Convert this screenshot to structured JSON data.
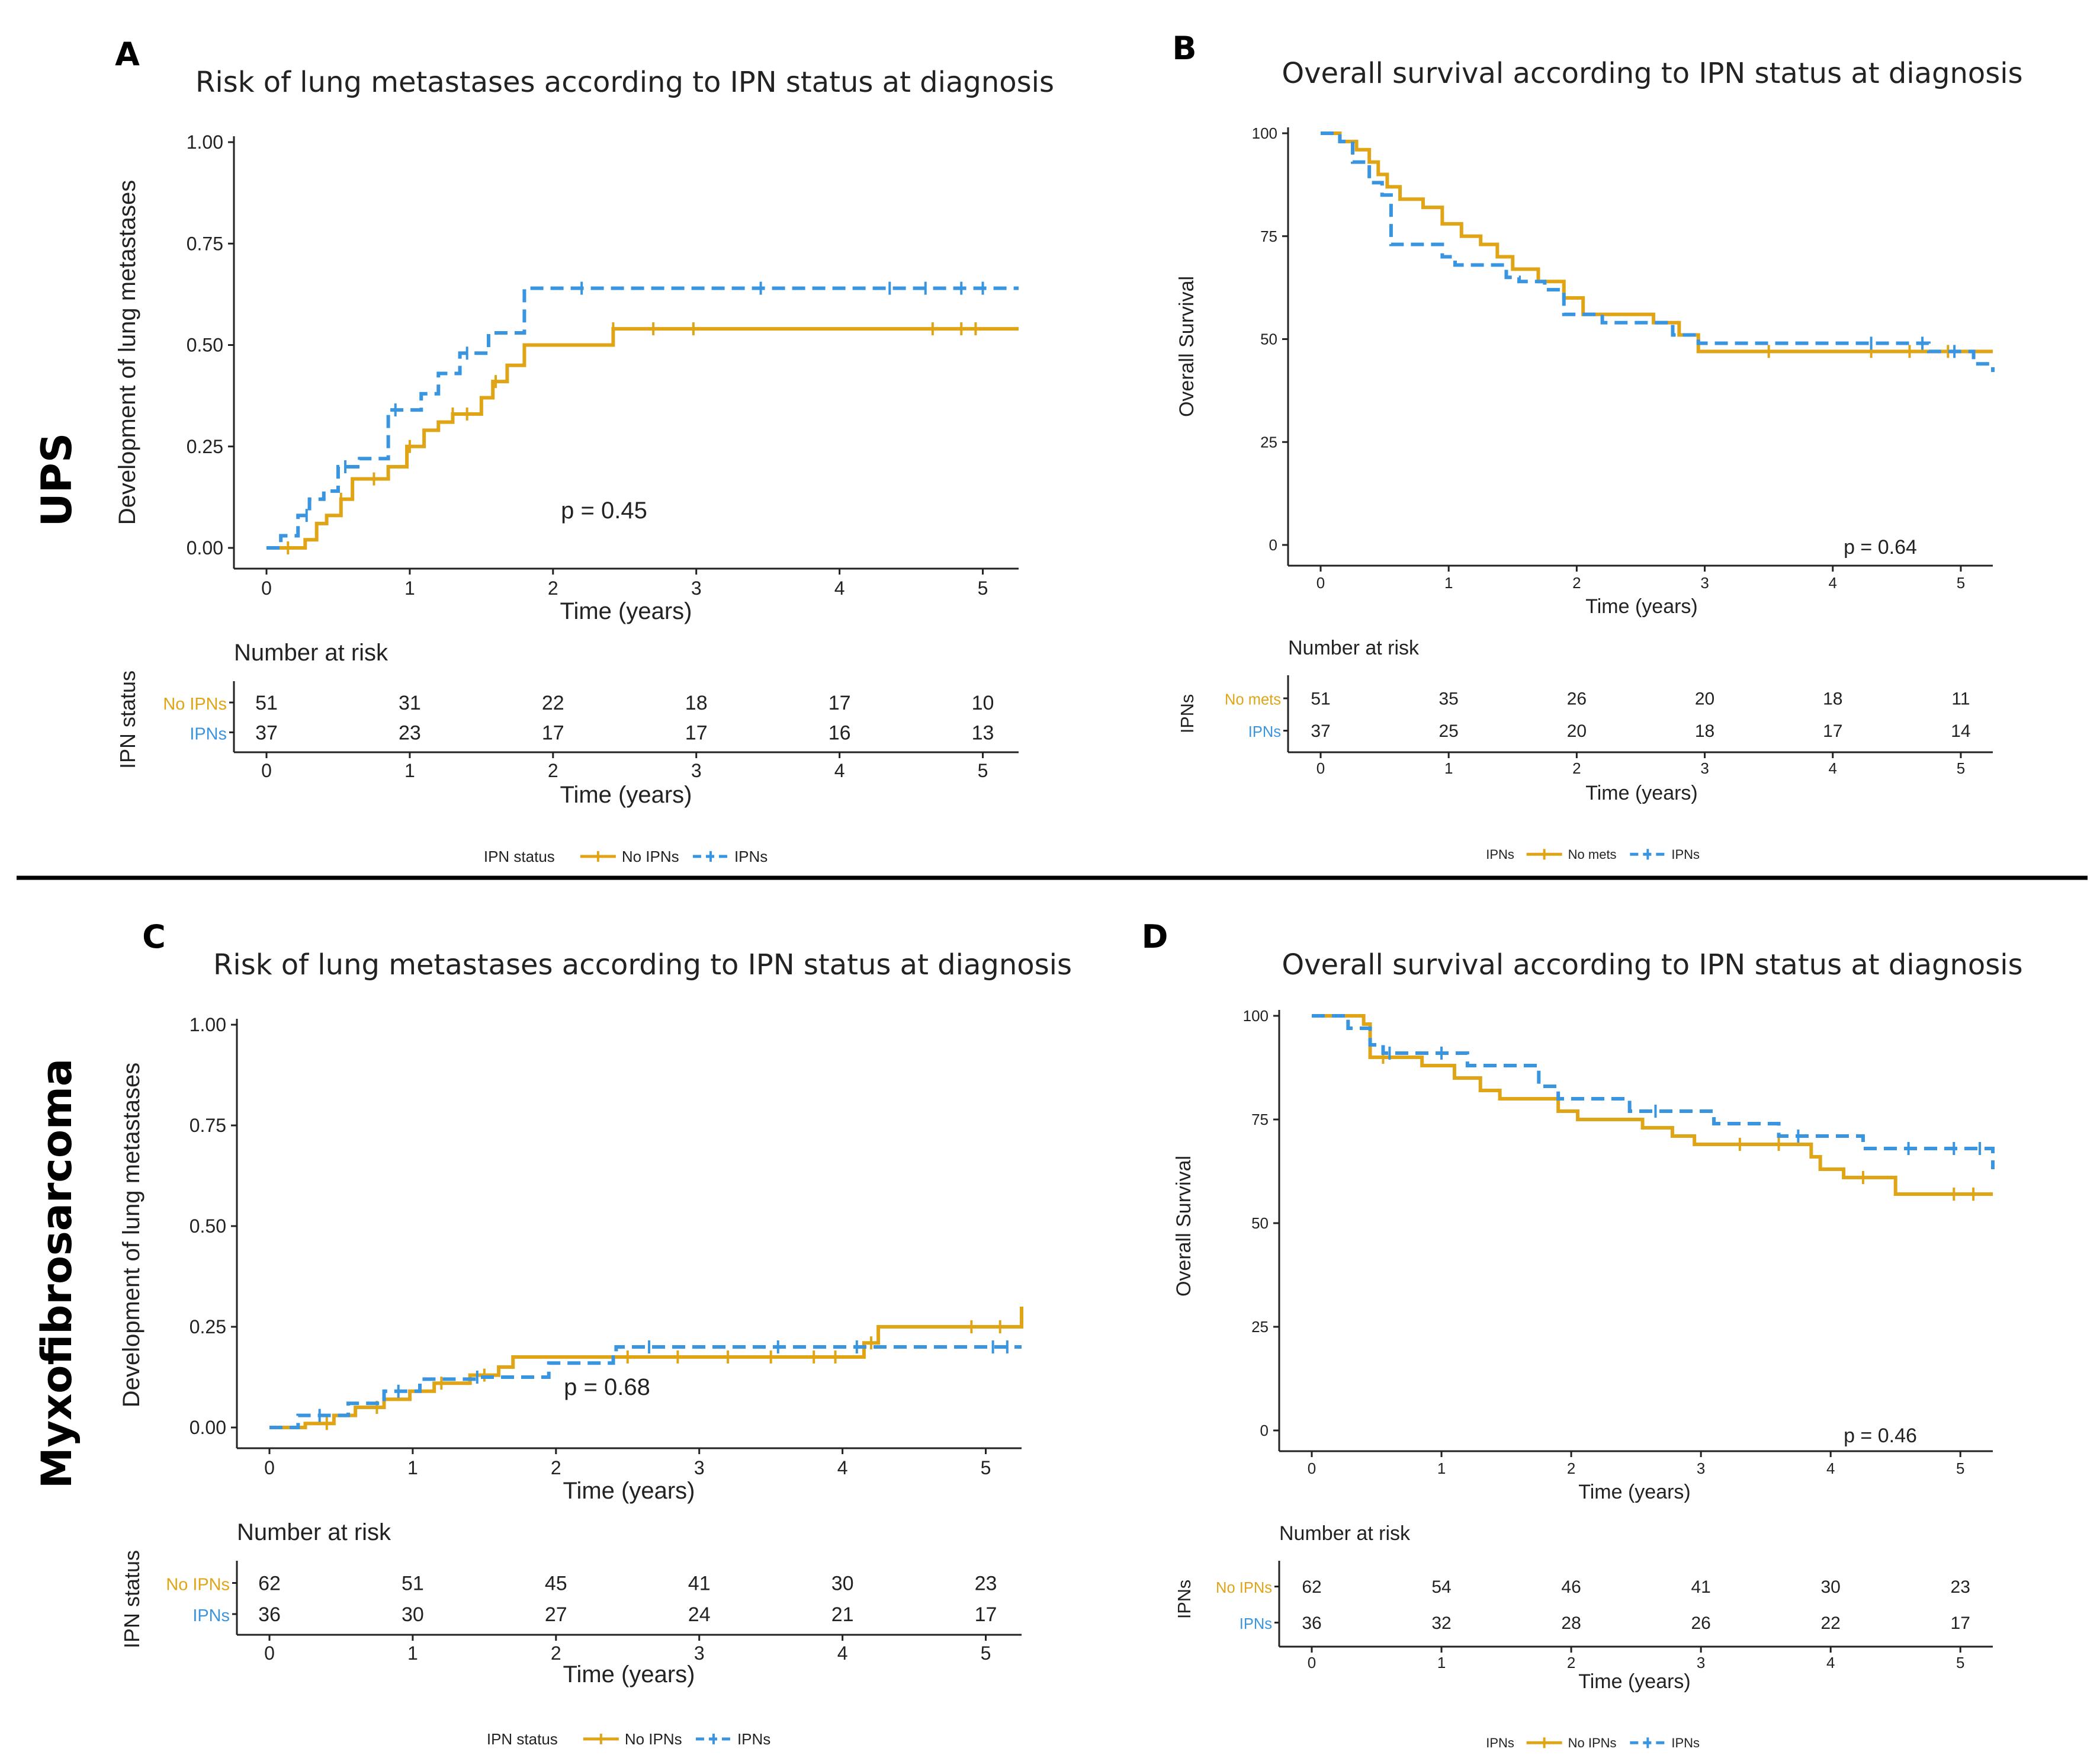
{
  "side_labels": [
    "UPS",
    "Myxofibrosarcoma"
  ],
  "colors": {
    "gold": "#E0A516",
    "blue": "#3A95E0",
    "axis": "#222222"
  },
  "panels": [
    {
      "letter": "A",
      "title": "Risk of lung metastases according to IPN status at diagnosis",
      "ylabel": "Development of lung metastases",
      "xlabel": "Time (years)",
      "yticks": [
        "0.00",
        "0.25",
        "0.50",
        "0.75",
        "1.00"
      ],
      "xticks": [
        "0",
        "1",
        "2",
        "3",
        "4",
        "5"
      ],
      "pvalue": "p = 0.45",
      "risk_title": "Number at risk",
      "risk_ylabel": "IPN status",
      "risk_xlabel": "Time (years)",
      "risk_rows": [
        {
          "label": "No IPNs",
          "values": [
            "51",
            "31",
            "22",
            "18",
            "17",
            "10"
          ]
        },
        {
          "label": "IPNs",
          "values": [
            "37",
            "23",
            "17",
            "17",
            "16",
            "13"
          ]
        }
      ],
      "legend_title": "IPN status",
      "legend_items": [
        "No IPNs",
        "IPNs"
      ]
    },
    {
      "letter": "B",
      "title": "Overall survival according to IPN status at diagnosis",
      "ylabel": "Overall Survival",
      "xlabel": "Time (years)",
      "yticks": [
        "0",
        "25",
        "50",
        "75",
        "100"
      ],
      "xticks": [
        "0",
        "1",
        "2",
        "3",
        "4",
        "5"
      ],
      "pvalue": "p = 0.64",
      "risk_title": "Number at risk",
      "risk_ylabel": "IPNs",
      "risk_xlabel": "Time (years)",
      "risk_rows": [
        {
          "label": "No mets",
          "values": [
            "51",
            "35",
            "26",
            "20",
            "18",
            "11"
          ]
        },
        {
          "label": "IPNs",
          "values": [
            "37",
            "25",
            "20",
            "18",
            "17",
            "14"
          ]
        }
      ],
      "legend_title": "IPNs",
      "legend_items": [
        "No mets",
        "IPNs"
      ]
    },
    {
      "letter": "C",
      "title": "Risk of lung metastases according to IPN status at diagnosis",
      "ylabel": "Development of lung metastases",
      "xlabel": "Time (years)",
      "yticks": [
        "0.00",
        "0.25",
        "0.50",
        "0.75",
        "1.00"
      ],
      "xticks": [
        "0",
        "1",
        "2",
        "3",
        "4",
        "5"
      ],
      "pvalue": "p = 0.68",
      "risk_title": "Number at risk",
      "risk_ylabel": "IPN status",
      "risk_xlabel": "Time (years)",
      "risk_rows": [
        {
          "label": "No IPNs",
          "values": [
            "62",
            "51",
            "45",
            "41",
            "30",
            "23"
          ]
        },
        {
          "label": "IPNs",
          "values": [
            "36",
            "30",
            "27",
            "24",
            "21",
            "17"
          ]
        }
      ],
      "legend_title": "IPN status",
      "legend_items": [
        "No IPNs",
        "IPNs"
      ]
    },
    {
      "letter": "D",
      "title": "Overall survival according to IPN status at diagnosis",
      "ylabel": "Overall Survival",
      "xlabel": "Time (years)",
      "yticks": [
        "0",
        "25",
        "50",
        "75",
        "100"
      ],
      "xticks": [
        "0",
        "1",
        "2",
        "3",
        "4",
        "5"
      ],
      "pvalue": "p = 0.46",
      "risk_title": "Number at risk",
      "risk_ylabel": "IPNs",
      "risk_xlabel": "Time (years)",
      "risk_rows": [
        {
          "label": "No IPNs",
          "values": [
            "62",
            "54",
            "46",
            "41",
            "30",
            "23"
          ]
        },
        {
          "label": "IPNs",
          "values": [
            "36",
            "32",
            "28",
            "26",
            "22",
            "17"
          ]
        }
      ],
      "legend_title": "IPNs",
      "legend_items": [
        "No IPNs",
        "IPNs"
      ]
    }
  ],
  "chart_data": [
    {
      "type": "line",
      "title": "Risk of lung metastases according to IPN status at diagnosis",
      "xlabel": "Time (years)",
      "ylabel": "Development of lung metastases",
      "xlim": [
        0,
        5.25
      ],
      "ylim": [
        0,
        1
      ],
      "series": [
        {
          "name": "No IPNs",
          "style": "solid",
          "x": [
            0,
            0.27,
            0.35,
            0.42,
            0.52,
            0.6,
            0.85,
            0.98,
            1.1,
            1.2,
            1.3,
            1.5,
            1.58,
            1.68,
            1.8,
            2.42,
            5.25
          ],
          "y": [
            0,
            0.02,
            0.06,
            0.08,
            0.12,
            0.17,
            0.2,
            0.25,
            0.29,
            0.31,
            0.33,
            0.37,
            0.41,
            0.45,
            0.5,
            0.54,
            0.54
          ],
          "censor_x": [
            0.15,
            0.52,
            0.75,
            1.0,
            1.3,
            1.4,
            1.6,
            2.42,
            2.7,
            2.98,
            4.65,
            4.85,
            4.95
          ]
        },
        {
          "name": "IPNs",
          "style": "dashed",
          "x": [
            0,
            0.1,
            0.22,
            0.3,
            0.4,
            0.5,
            0.65,
            0.85,
            1.08,
            1.2,
            1.35,
            1.55,
            1.8,
            5.25
          ],
          "y": [
            0,
            0.03,
            0.08,
            0.12,
            0.14,
            0.2,
            0.22,
            0.34,
            0.38,
            0.43,
            0.48,
            0.53,
            0.64,
            0.64
          ],
          "censor_x": [
            0.28,
            0.55,
            0.9,
            1.4,
            2.2,
            3.45,
            4.35,
            4.6,
            4.85,
            5.0
          ]
        }
      ],
      "pvalue": "p = 0.45"
    },
    {
      "type": "line",
      "title": "Overall survival according to IPN status at diagnosis",
      "xlabel": "Time (years)",
      "ylabel": "Overall Survival",
      "xlim": [
        0,
        5.25
      ],
      "ylim": [
        0,
        100
      ],
      "series": [
        {
          "name": "No mets",
          "style": "solid",
          "x": [
            0,
            0.15,
            0.28,
            0.38,
            0.45,
            0.52,
            0.62,
            0.8,
            0.95,
            1.1,
            1.25,
            1.38,
            1.5,
            1.7,
            1.9,
            2.05,
            2.6,
            2.8,
            2.95,
            5.25
          ],
          "y": [
            100,
            98,
            96,
            93,
            90,
            87,
            84,
            82,
            78,
            75,
            73,
            70,
            67,
            64,
            60,
            56,
            54,
            51,
            47,
            47
          ],
          "censor_x": [
            3.5,
            4.3,
            4.6,
            4.9
          ]
        },
        {
          "name": "IPNs",
          "style": "dashed",
          "x": [
            0,
            0.15,
            0.25,
            0.38,
            0.48,
            0.55,
            0.95,
            1.05,
            1.45,
            1.55,
            1.75,
            1.9,
            2.2,
            2.75,
            2.95,
            4.3,
            4.75,
            5.1,
            5.25
          ],
          "y": [
            100,
            98,
            93,
            88,
            85,
            73,
            70,
            68,
            65,
            64,
            62,
            56,
            54,
            51,
            49,
            49,
            47,
            44,
            42
          ],
          "censor_x": [
            4.3,
            4.7,
            4.95
          ]
        }
      ],
      "pvalue": "p = 0.64"
    },
    {
      "type": "line",
      "title": "Risk of lung metastases according to IPN status at diagnosis",
      "xlabel": "Time (years)",
      "ylabel": "Development of lung metastases",
      "xlim": [
        0,
        5.25
      ],
      "ylim": [
        0,
        1
      ],
      "series": [
        {
          "name": "No IPNs",
          "style": "solid",
          "x": [
            0,
            0.25,
            0.45,
            0.6,
            0.8,
            0.98,
            1.15,
            1.4,
            1.6,
            1.7,
            4.15,
            4.25,
            5.25
          ],
          "y": [
            0,
            0.01,
            0.03,
            0.05,
            0.07,
            0.09,
            0.11,
            0.13,
            0.15,
            0.175,
            0.21,
            0.25,
            0.3
          ],
          "censor_x": [
            0.4,
            0.75,
            1.2,
            1.5,
            2.5,
            2.85,
            3.2,
            3.5,
            3.8,
            3.95,
            4.2,
            4.9,
            5.1
          ]
        },
        {
          "name": "IPNs",
          "style": "dashed",
          "x": [
            0,
            0.2,
            0.55,
            0.8,
            1.05,
            1.45,
            1.95,
            2.4,
            2.42,
            4.2,
            5.25
          ],
          "y": [
            0,
            0.03,
            0.06,
            0.09,
            0.12,
            0.125,
            0.16,
            0.175,
            0.2,
            0.2,
            0.2
          ],
          "censor_x": [
            0.35,
            0.9,
            1.45,
            2.65,
            3.55,
            4.1,
            5.05,
            5.15
          ]
        }
      ],
      "pvalue": "p = 0.68"
    },
    {
      "type": "line",
      "title": "Overall survival according to IPN status at diagnosis",
      "xlabel": "Time (years)",
      "ylabel": "Overall Survival",
      "xlim": [
        0,
        5.25
      ],
      "ylim": [
        0,
        100
      ],
      "series": [
        {
          "name": "No IPNs",
          "style": "solid",
          "x": [
            0,
            0.4,
            0.45,
            0.85,
            1.1,
            1.3,
            1.45,
            1.9,
            2.05,
            2.55,
            2.78,
            2.95,
            3.85,
            3.92,
            4.1,
            4.5,
            5.25
          ],
          "y": [
            100,
            98,
            90,
            88,
            85,
            82,
            80,
            77,
            75,
            73,
            71,
            69,
            66,
            63,
            61,
            57,
            57
          ],
          "censor_x": [
            0.55,
            3.3,
            3.6,
            4.25,
            4.95,
            5.1
          ]
        },
        {
          "name": "IPNs",
          "style": "dashed",
          "x": [
            0,
            0.28,
            0.45,
            0.55,
            1.2,
            1.75,
            1.9,
            2.45,
            3.1,
            3.6,
            4.25,
            5.2,
            5.25
          ],
          "y": [
            100,
            97,
            93,
            91,
            88,
            83,
            80,
            77,
            74,
            71,
            68,
            68,
            63
          ],
          "censor_x": [
            0.6,
            1.0,
            2.65,
            3.75,
            4.6,
            4.95,
            5.15
          ]
        }
      ],
      "pvalue": "p = 0.46"
    }
  ]
}
